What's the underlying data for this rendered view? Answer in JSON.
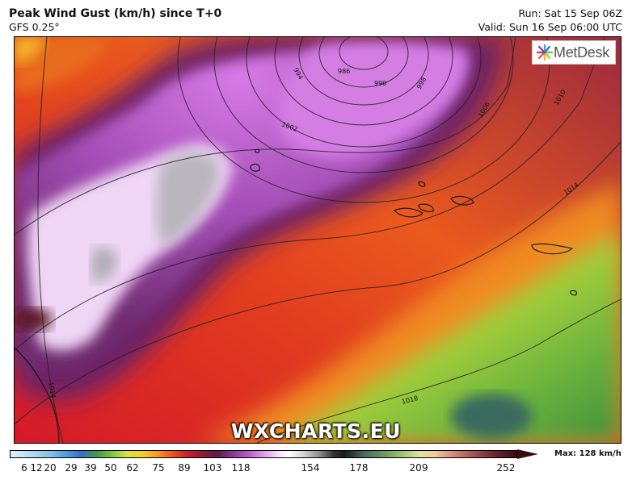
{
  "header": {
    "title": "Peak Wind Gust (km/h) since T+0",
    "model": "GFS 0.25°",
    "run": "Run: Sat 15 Sep 06Z",
    "valid": "Valid: Sun 16 Sep 06:00 UTC"
  },
  "branding": {
    "logo": "MetDesk",
    "watermark": "WXCHARTS.EU"
  },
  "legend": {
    "ticks": [
      "6",
      "12",
      "20",
      "29",
      "39",
      "50",
      "62",
      "75",
      "89",
      "103",
      "118",
      "154",
      "178",
      "209",
      "252"
    ],
    "max": "Max: 128 km/h"
  },
  "map": {
    "isobar_labels": [
      "986",
      "990",
      "994",
      "998",
      "1002",
      "1006",
      "1010",
      "1014",
      "1014",
      "1018"
    ],
    "colors": {
      "calm": "#c8e6f5",
      "light": "#5aa53c",
      "moderate": "#f0d21e",
      "strong": "#e9461e",
      "gale": "#8c1e3c",
      "severe": "#c864dc",
      "extreme": "#eed2f5"
    }
  }
}
